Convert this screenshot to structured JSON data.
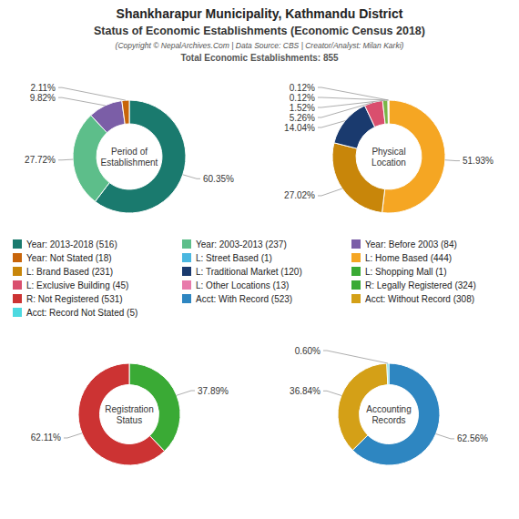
{
  "title": "Shankharapur Municipality, Kathmandu District",
  "subtitle": "Status of Economic Establishments (Economic Census 2018)",
  "annotations": [
    "(Copyright © NepalArchives.Com | Data Source: CBS | Creator/Analyst: Milan Karki)",
    "Total Economic Establishments: 855"
  ],
  "legend_items": [
    {
      "label": "Year: 2013-2018 (516)",
      "color": "#1a7a6e"
    },
    {
      "label": "Year: 2003-2013 (237)",
      "color": "#5dbe8a"
    },
    {
      "label": "Year: Before 2003 (84)",
      "color": "#7b5ea7"
    },
    {
      "label": "Year: Not Stated (18)",
      "color": "#c8650a"
    },
    {
      "label": "L: Street Based (1)",
      "color": "#4ab7e0"
    },
    {
      "label": "L: Home Based (444)",
      "color": "#f5a623"
    },
    {
      "label": "L: Brand Based (231)",
      "color": "#c8860a"
    },
    {
      "label": "L: Traditional Market (120)",
      "color": "#1a3a6e"
    },
    {
      "label": "L: Shopping Mall (1)",
      "color": "#3aaa35"
    },
    {
      "label": "L: Exclusive Building (45)",
      "color": "#d94f6e"
    },
    {
      "label": "L: Other Locations (13)",
      "color": "#e87aab"
    },
    {
      "label": "R: Legally Registered (324)",
      "color": "#3aaa35"
    },
    {
      "label": "R: Not Registered (531)",
      "color": "#cc3333"
    },
    {
      "label": "Acct: With Record (523)",
      "color": "#2e86c1"
    },
    {
      "label": "Acct: Without Record (308)",
      "color": "#d4a017"
    },
    {
      "label": "Acct: Record Not Stated (5)",
      "color": "#4dd9e0"
    }
  ],
  "chart_data": [
    {
      "type": "pie",
      "title": "Period of\nEstablishment",
      "values": [
        60.35,
        27.72,
        9.82,
        2.11
      ],
      "value_labels": [
        "60.35%",
        "27.72%",
        "9.82%",
        "2.11%"
      ],
      "colors": [
        "#1a7a6e",
        "#5dbe8a",
        "#7b5ea7",
        "#c8650a"
      ]
    },
    {
      "type": "pie",
      "title": "Physical\nLocation",
      "values": [
        51.93,
        27.02,
        14.04,
        5.26,
        1.52,
        0.12,
        0.12
      ],
      "value_labels": [
        "51.93%",
        "27.02%",
        "14.04%",
        "5.26%",
        "1.52%",
        "0.12%",
        "0.12%"
      ],
      "colors": [
        "#f5a623",
        "#c8860a",
        "#1a3a6e",
        "#d94f6e",
        "#7ab648",
        "#1a7a6e",
        "#e87aab"
      ]
    },
    {
      "type": "pie",
      "title": "Registration\nStatus",
      "values": [
        37.89,
        62.11
      ],
      "value_labels": [
        "37.89%",
        "62.11%"
      ],
      "colors": [
        "#3aaa35",
        "#cc3333"
      ]
    },
    {
      "type": "pie",
      "title": "Accounting\nRecords",
      "values": [
        62.56,
        36.84,
        0.6
      ],
      "value_labels": [
        "62.56%",
        "36.84%",
        "0.60%"
      ],
      "colors": [
        "#2e86c1",
        "#d4a017",
        "#4dd9e0"
      ]
    }
  ]
}
